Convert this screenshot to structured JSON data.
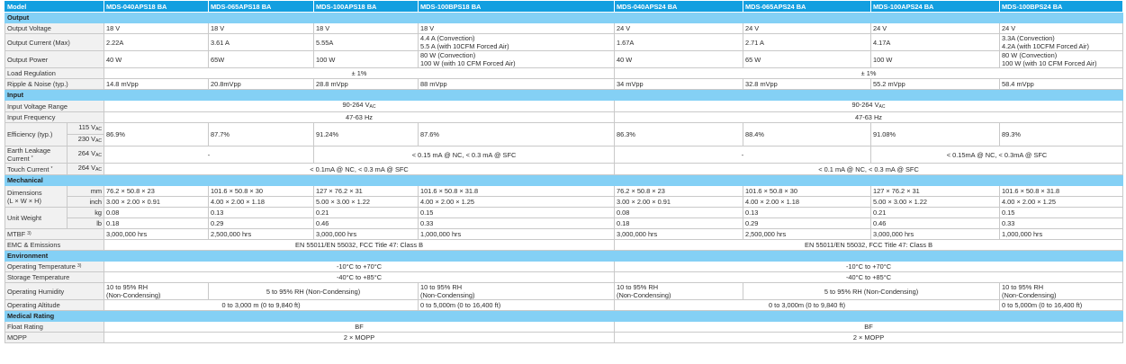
{
  "header": {
    "label": "Model",
    "models": [
      "MDS-040APS18 BA",
      "MDS-065APS18 BA",
      "MDS-100APS18 BA",
      "MDS-100BPS18 BA",
      "MDS-040APS24 BA",
      "MDS-065APS24 BA",
      "MDS-100APS24 BA",
      "MDS-100BPS24 BA"
    ]
  },
  "colors": {
    "header_bg": "#139fe0",
    "section_bg": "#84d0f5",
    "label_bg": "#f1f1f1",
    "border": "#c9c9c9"
  },
  "rows": [
    {
      "section": "Output"
    },
    {
      "label": "Output Voltage",
      "cells": [
        {
          "t": "18 V"
        },
        {
          "t": "18 V"
        },
        {
          "t": "18 V"
        },
        {
          "t": "18 V"
        },
        {
          "t": "24 V"
        },
        {
          "t": "24 V"
        },
        {
          "t": "24 V"
        },
        {
          "t": "24 V"
        }
      ]
    },
    {
      "label": "Output Current (Max)",
      "cells": [
        {
          "t": "2.22A"
        },
        {
          "t": "3.61 A"
        },
        {
          "t": "5.55A"
        },
        {
          "t": "4.4 A (Convection)",
          "t2": "5.5 A (with 10CFM Forced Air)"
        },
        {
          "t": "1.67A"
        },
        {
          "t": "2.71 A"
        },
        {
          "t": "4.17A"
        },
        {
          "t": "3.3A (Convection)",
          "t2": "4.2A (with 10CFM Forced Air)"
        }
      ]
    },
    {
      "label": "Output Power",
      "cells": [
        {
          "t": "40 W"
        },
        {
          "t": "65W"
        },
        {
          "t": "100 W"
        },
        {
          "t": "80 W (Convection)",
          "t2": "100 W (with 10 CFM Forced Air)"
        },
        {
          "t": "40 W"
        },
        {
          "t": "65 W"
        },
        {
          "t": "100 W"
        },
        {
          "t": "80 W (Convection)",
          "t2": "100 W (with 10 CFM Forced Air)"
        }
      ]
    },
    {
      "label": "Load Regulation",
      "cells": [
        {
          "t": "± 1%",
          "span": 4
        },
        {
          "t": "± 1%",
          "span": 4
        }
      ]
    },
    {
      "label": "Ripple & Noise (typ.)",
      "cells": [
        {
          "t": "14.8 mVpp"
        },
        {
          "t": "20.8mVpp"
        },
        {
          "t": "28.8 mVpp"
        },
        {
          "t": "88 mVpp"
        },
        {
          "t": "34 mVpp"
        },
        {
          "t": "32.8 mVpp"
        },
        {
          "t": "55.2 mVpp"
        },
        {
          "t": "58.4 mVpp"
        }
      ]
    },
    {
      "section": "Input"
    },
    {
      "label": "Input Voltage Range",
      "cells": [
        {
          "t": "90-264 V",
          "sub": "AC",
          "span": 4
        },
        {
          "t": "90-264 V",
          "sub": "AC",
          "span": 4
        }
      ]
    },
    {
      "label": "Input Frequency",
      "cells": [
        {
          "t": "47-63 Hz",
          "span": 4
        },
        {
          "t": "47-63 Hz",
          "span": 4
        }
      ]
    },
    {
      "label": "Efficiency (typ.)",
      "label_rowspan": 2,
      "sub": "115 V",
      "sub_sub": "AC",
      "cells": [
        {
          "t": "86.9%",
          "rowspan": 2
        },
        {
          "t": "87.7%",
          "rowspan": 2
        },
        {
          "t": "91.24%",
          "rowspan": 2
        },
        {
          "t": "87.6%",
          "rowspan": 2
        },
        {
          "t": "86.3%",
          "rowspan": 2
        },
        {
          "t": "88.4%",
          "rowspan": 2
        },
        {
          "t": "91.08%",
          "rowspan": 2
        },
        {
          "t": "89.3%",
          "rowspan": 2
        }
      ]
    },
    {
      "label_skip": true,
      "sub": "230 V",
      "sub_sub": "AC",
      "cells": []
    },
    {
      "label": "Earth Leakage",
      "label2": "Current",
      "label_sup": "*",
      "sub": "264 V",
      "sub_sub": "AC",
      "cells": [
        {
          "t": "-",
          "span": 2
        },
        {
          "t": "< 0.15 mA @ NC, < 0.3 mA @ SFC",
          "span": 2
        },
        {
          "t": "-",
          "span": 2
        },
        {
          "t": "< 0.15mA @ NC, < 0.3mA @ SFC",
          "span": 2
        }
      ]
    },
    {
      "label": "Touch Current",
      "label_sup": "*",
      "sub": "264 V",
      "sub_sub": "AC",
      "cells": [
        {
          "t": "< 0.1mA @ NC, < 0.3 mA @ SFC",
          "span": 4
        },
        {
          "t": "< 0.1 mA @ NC, < 0.3 mA @ SFC",
          "span": 4
        }
      ]
    },
    {
      "section": "Mechanical"
    },
    {
      "label": "Dimensions",
      "label2": "(L × W × H)",
      "label_rowspan": 2,
      "sub": "mm",
      "cells": [
        {
          "t": "76.2 × 50.8 × 23"
        },
        {
          "t": "101.6 × 50.8 × 30"
        },
        {
          "t": "127 × 76.2 × 31"
        },
        {
          "t": "101.6 × 50.8 × 31.8"
        },
        {
          "t": "76.2 × 50.8 × 23"
        },
        {
          "t": "101.6 × 50.8 × 30"
        },
        {
          "t": "127 × 76.2 × 31"
        },
        {
          "t": "101.6 × 50.8 × 31.8"
        }
      ]
    },
    {
      "label_skip": true,
      "sub": "inch",
      "cells": [
        {
          "t": "3.00 × 2.00 × 0.91"
        },
        {
          "t": "4.00 × 2.00 × 1.18"
        },
        {
          "t": "5.00 × 3.00 × 1.22"
        },
        {
          "t": "4.00 × 2.00 × 1.25"
        },
        {
          "t": "3.00 × 2.00 × 0.91"
        },
        {
          "t": "4.00 × 2.00 × 1.18"
        },
        {
          "t": "5.00 × 3.00 × 1.22"
        },
        {
          "t": "4.00 × 2.00 × 1.25"
        }
      ]
    },
    {
      "label": "Unit Weight",
      "label_rowspan": 2,
      "sub": "kg",
      "cells": [
        {
          "t": "0.08"
        },
        {
          "t": "0.13"
        },
        {
          "t": "0.21"
        },
        {
          "t": "0.15"
        },
        {
          "t": "0.08"
        },
        {
          "t": "0.13"
        },
        {
          "t": "0.21"
        },
        {
          "t": "0.15"
        }
      ]
    },
    {
      "label_skip": true,
      "sub": "lb",
      "cells": [
        {
          "t": "0.18"
        },
        {
          "t": "0.29"
        },
        {
          "t": "0.46"
        },
        {
          "t": "0.33"
        },
        {
          "t": "0.18"
        },
        {
          "t": "0.29"
        },
        {
          "t": "0.46"
        },
        {
          "t": "0.33"
        }
      ]
    },
    {
      "label": "MTBF",
      "label_sup": "3)",
      "cells": [
        {
          "t": "3,000,000 hrs"
        },
        {
          "t": "2,500,000 hrs"
        },
        {
          "t": "3,000,000 hrs"
        },
        {
          "t": "1,000,000 hrs"
        },
        {
          "t": "3,000,000 hrs"
        },
        {
          "t": "2,500,000 hrs"
        },
        {
          "t": "3,000,000 hrs"
        },
        {
          "t": "1,000,000 hrs"
        }
      ]
    },
    {
      "label": "EMC & Emissions",
      "cells": [
        {
          "t": "EN 55011/EN 55032, FCC Title 47: Class B",
          "span": 4
        },
        {
          "t": "EN 55011/EN 55032, FCC Title 47: Class B",
          "span": 4
        }
      ]
    },
    {
      "section": "Environment"
    },
    {
      "label": "Operating Temperature",
      "label_sup": "3)",
      "cells": [
        {
          "t": "-10°C to +70°C",
          "span": 4
        },
        {
          "t": "-10°C to +70°C",
          "span": 4
        }
      ]
    },
    {
      "label": "Storage Temperature",
      "cells": [
        {
          "t": "-40°C to +85°C",
          "span": 4
        },
        {
          "t": "-40°C to +85°C",
          "span": 4
        }
      ]
    },
    {
      "label": "Operating Humidity",
      "cells": [
        {
          "t": "10 to 95% RH",
          "t2": "(Non-Condensing)"
        },
        {
          "t": "5 to 95% RH (Non-Condensing)",
          "span": 2
        },
        {
          "t": "10 to 95% RH",
          "t2": "(Non-Condensing)"
        },
        {
          "t": "10 to 95% RH",
          "t2": "(Non-Condensing)"
        },
        {
          "t": "5 to 95% RH (Non-Condensing)",
          "span": 2
        },
        {
          "t": "10 to 95% RH",
          "t2": "(Non-Condensing)"
        }
      ]
    },
    {
      "label": "Operating Altitude",
      "cells": [
        {
          "t": "0 to 3,000 m (0 to 9,840 ft)",
          "span": 3
        },
        {
          "t": "0 to 5,000m (0 to 16,400 ft)"
        },
        {
          "t": "0 to 3,000m (0 to 9,840 ft)",
          "span": 3
        },
        {
          "t": "0 to 5,000m (0 to 16,400 ft)"
        }
      ]
    },
    {
      "section": "Medical Rating"
    },
    {
      "label": "Float Rating",
      "cells": [
        {
          "t": "BF",
          "span": 4
        },
        {
          "t": "BF",
          "span": 4
        }
      ]
    },
    {
      "label": "MOPP",
      "cells": [
        {
          "t": "2 × MOPP",
          "span": 4
        },
        {
          "t": "2 × MOPP",
          "span": 4
        }
      ]
    }
  ]
}
